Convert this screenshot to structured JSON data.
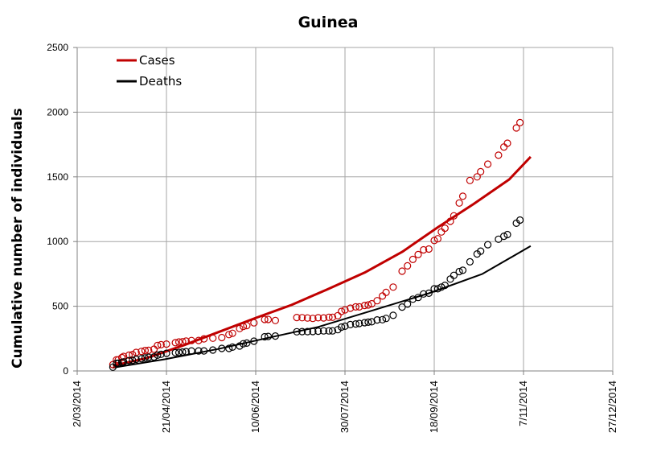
{
  "chart_data": {
    "type": "scatter",
    "title": "Guinea",
    "xlabel": "",
    "ylabel": "Cumulative number of individuals",
    "x_axis": {
      "type": "date",
      "ticks": [
        "2/03/2014",
        "21/04/2014",
        "10/06/2014",
        "30/07/2014",
        "18/09/2014",
        "7/11/2014",
        "27/12/2014"
      ],
      "xlim": [
        "2014-03-02",
        "2014-12-27"
      ],
      "grid": true
    },
    "y_axis": {
      "ticks": [
        "0",
        "500",
        "1000",
        "1500",
        "2000",
        "2500"
      ],
      "ylim": [
        0,
        2500
      ],
      "grid": true
    },
    "legend": {
      "position": "top-left",
      "entries": [
        {
          "label": "Cases",
          "color": "#c00000"
        },
        {
          "label": "Deaths",
          "color": "#000000"
        }
      ]
    },
    "series": [
      {
        "name": "Cases",
        "kind": "model-line",
        "color": "#c00000",
        "points": [
          [
            "2014-03-22",
            40
          ],
          [
            "2014-04-10",
            100
          ],
          [
            "2014-05-01",
            200
          ],
          [
            "2014-05-20",
            300
          ],
          [
            "2014-06-10",
            410
          ],
          [
            "2014-06-30",
            510
          ],
          [
            "2014-07-20",
            630
          ],
          [
            "2014-08-10",
            760
          ],
          [
            "2014-08-31",
            920
          ],
          [
            "2014-09-20",
            1110
          ],
          [
            "2014-10-10",
            1290
          ],
          [
            "2014-10-30",
            1480
          ],
          [
            "2014-11-11",
            1655
          ]
        ]
      },
      {
        "name": "Deaths",
        "kind": "model-line",
        "color": "#000000",
        "points": [
          [
            "2014-03-22",
            25
          ],
          [
            "2014-04-20",
            90
          ],
          [
            "2014-05-20",
            170
          ],
          [
            "2014-06-15",
            250
          ],
          [
            "2014-07-15",
            340
          ],
          [
            "2014-08-15",
            470
          ],
          [
            "2014-09-15",
            600
          ],
          [
            "2014-10-15",
            750
          ],
          [
            "2014-11-11",
            965
          ]
        ]
      },
      {
        "name": "Cases",
        "kind": "observed",
        "color": "#c00000",
        "points": [
          [
            "2014-03-22",
            49
          ],
          [
            "2014-03-24",
            86
          ],
          [
            "2014-03-25",
            86
          ],
          [
            "2014-03-27",
            103
          ],
          [
            "2014-03-28",
            112
          ],
          [
            "2014-03-31",
            122
          ],
          [
            "2014-04-02",
            127
          ],
          [
            "2014-04-04",
            143
          ],
          [
            "2014-04-07",
            151
          ],
          [
            "2014-04-09",
            158
          ],
          [
            "2014-04-11",
            159
          ],
          [
            "2014-04-14",
            168
          ],
          [
            "2014-04-16",
            197
          ],
          [
            "2014-04-18",
            203
          ],
          [
            "2014-04-21",
            208
          ],
          [
            "2014-04-26",
            218
          ],
          [
            "2014-04-28",
            224
          ],
          [
            "2014-04-30",
            226
          ],
          [
            "2014-05-02",
            231
          ],
          [
            "2014-05-05",
            235
          ],
          [
            "2014-05-09",
            236
          ],
          [
            "2014-05-12",
            248
          ],
          [
            "2014-05-17",
            253
          ],
          [
            "2014-05-22",
            258
          ],
          [
            "2014-05-26",
            281
          ],
          [
            "2014-05-28",
            291
          ],
          [
            "2014-06-01",
            328
          ],
          [
            "2014-06-03",
            344
          ],
          [
            "2014-06-05",
            351
          ],
          [
            "2014-06-09",
            372
          ],
          [
            "2014-06-15",
            398
          ],
          [
            "2014-06-17",
            398
          ],
          [
            "2014-06-21",
            390
          ],
          [
            "2014-07-03",
            413
          ],
          [
            "2014-07-06",
            412
          ],
          [
            "2014-07-09",
            409
          ],
          [
            "2014-07-12",
            406
          ],
          [
            "2014-07-15",
            411
          ],
          [
            "2014-07-18",
            410
          ],
          [
            "2014-07-21",
            415
          ],
          [
            "2014-07-23",
            415
          ],
          [
            "2014-07-26",
            427
          ],
          [
            "2014-07-28",
            460
          ],
          [
            "2014-07-30",
            472
          ],
          [
            "2014-08-02",
            485
          ],
          [
            "2014-08-05",
            495
          ],
          [
            "2014-08-07",
            495
          ],
          [
            "2014-08-10",
            506
          ],
          [
            "2014-08-12",
            510
          ],
          [
            "2014-08-14",
            519
          ],
          [
            "2014-08-17",
            543
          ],
          [
            "2014-08-20",
            579
          ],
          [
            "2014-08-22",
            607
          ],
          [
            "2014-08-26",
            648
          ],
          [
            "2014-08-31",
            771
          ],
          [
            "2014-09-03",
            812
          ],
          [
            "2014-09-06",
            862
          ],
          [
            "2014-09-09",
            899
          ],
          [
            "2014-09-12",
            936
          ],
          [
            "2014-09-15",
            942
          ],
          [
            "2014-09-18",
            1008
          ],
          [
            "2014-09-20",
            1022
          ],
          [
            "2014-09-22",
            1074
          ],
          [
            "2014-09-24",
            1103
          ],
          [
            "2014-09-27",
            1157
          ],
          [
            "2014-09-29",
            1199
          ],
          [
            "2014-10-02",
            1298
          ],
          [
            "2014-10-04",
            1350
          ],
          [
            "2014-10-08",
            1472
          ],
          [
            "2014-10-12",
            1500
          ],
          [
            "2014-10-14",
            1540
          ],
          [
            "2014-10-18",
            1598
          ],
          [
            "2014-10-24",
            1667
          ],
          [
            "2014-10-27",
            1731
          ],
          [
            "2014-10-29",
            1760
          ],
          [
            "2014-11-03",
            1878
          ],
          [
            "2014-11-05",
            1919
          ]
        ]
      },
      {
        "name": "Deaths",
        "kind": "observed",
        "color": "#000000",
        "points": [
          [
            "2014-03-22",
            29
          ],
          [
            "2014-03-24",
            59
          ],
          [
            "2014-03-25",
            60
          ],
          [
            "2014-03-27",
            66
          ],
          [
            "2014-03-28",
            70
          ],
          [
            "2014-03-31",
            80
          ],
          [
            "2014-04-02",
            83
          ],
          [
            "2014-04-04",
            90
          ],
          [
            "2014-04-07",
            95
          ],
          [
            "2014-04-09",
            101
          ],
          [
            "2014-04-11",
            106
          ],
          [
            "2014-04-14",
            108
          ],
          [
            "2014-04-16",
            122
          ],
          [
            "2014-04-18",
            129
          ],
          [
            "2014-04-21",
            136
          ],
          [
            "2014-04-26",
            141
          ],
          [
            "2014-04-28",
            143
          ],
          [
            "2014-04-30",
            146
          ],
          [
            "2014-05-02",
            149
          ],
          [
            "2014-05-05",
            155
          ],
          [
            "2014-05-09",
            155
          ],
          [
            "2014-05-12",
            155
          ],
          [
            "2014-05-17",
            162
          ],
          [
            "2014-05-22",
            174
          ],
          [
            "2014-05-26",
            174
          ],
          [
            "2014-05-28",
            184
          ],
          [
            "2014-06-01",
            193
          ],
          [
            "2014-06-03",
            210
          ],
          [
            "2014-06-05",
            215
          ],
          [
            "2014-06-09",
            230
          ],
          [
            "2014-06-15",
            264
          ],
          [
            "2014-06-17",
            267
          ],
          [
            "2014-06-21",
            270
          ],
          [
            "2014-07-03",
            303
          ],
          [
            "2014-07-06",
            304
          ],
          [
            "2014-07-09",
            304
          ],
          [
            "2014-07-12",
            305
          ],
          [
            "2014-07-15",
            307
          ],
          [
            "2014-07-18",
            310
          ],
          [
            "2014-07-21",
            310
          ],
          [
            "2014-07-23",
            310
          ],
          [
            "2014-07-26",
            319
          ],
          [
            "2014-07-28",
            339
          ],
          [
            "2014-07-30",
            346
          ],
          [
            "2014-08-02",
            358
          ],
          [
            "2014-08-05",
            363
          ],
          [
            "2014-08-07",
            367
          ],
          [
            "2014-08-10",
            373
          ],
          [
            "2014-08-12",
            377
          ],
          [
            "2014-08-14",
            380
          ],
          [
            "2014-08-17",
            394
          ],
          [
            "2014-08-20",
            396
          ],
          [
            "2014-08-22",
            406
          ],
          [
            "2014-08-26",
            430
          ],
          [
            "2014-08-31",
            494
          ],
          [
            "2014-09-03",
            517
          ],
          [
            "2014-09-06",
            555
          ],
          [
            "2014-09-09",
            568
          ],
          [
            "2014-09-12",
            595
          ],
          [
            "2014-09-15",
            601
          ],
          [
            "2014-09-18",
            635
          ],
          [
            "2014-09-20",
            635
          ],
          [
            "2014-09-22",
            648
          ],
          [
            "2014-09-24",
            662
          ],
          [
            "2014-09-27",
            710
          ],
          [
            "2014-09-29",
            739
          ],
          [
            "2014-10-02",
            768
          ],
          [
            "2014-10-04",
            778
          ],
          [
            "2014-10-08",
            843
          ],
          [
            "2014-10-12",
            904
          ],
          [
            "2014-10-14",
            926
          ],
          [
            "2014-10-18",
            976
          ],
          [
            "2014-10-24",
            1018
          ],
          [
            "2014-10-27",
            1041
          ],
          [
            "2014-10-29",
            1054
          ],
          [
            "2014-11-03",
            1142
          ],
          [
            "2014-11-05",
            1166
          ]
        ]
      }
    ]
  }
}
